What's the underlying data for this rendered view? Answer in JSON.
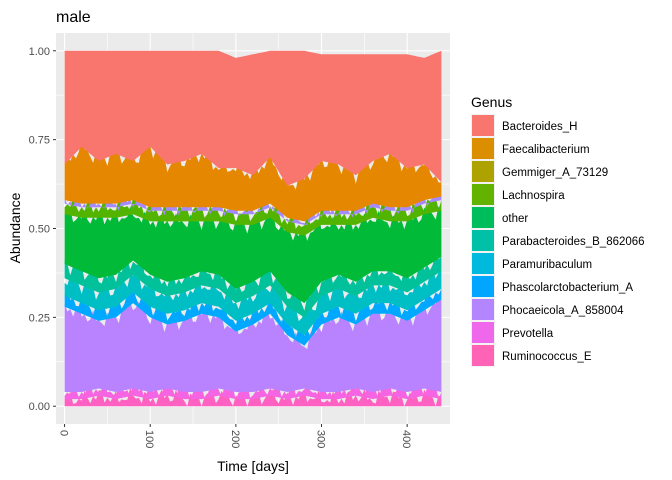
{
  "chart_data": {
    "type": "area",
    "title": "male",
    "xlabel": "Time [days]",
    "ylabel": "Abundance",
    "xlim": [
      -10,
      450
    ],
    "ylim": [
      -0.05,
      1.05
    ],
    "x_ticks": [
      0,
      100,
      200,
      300,
      400
    ],
    "x_tick_labels": [
      "0",
      "100",
      "200",
      "300",
      "400"
    ],
    "y_ticks": [
      0,
      0.25,
      0.5,
      0.75,
      1.0
    ],
    "y_tick_labels": [
      "0.00",
      "0.25",
      "0.50",
      "0.75",
      "1.00"
    ],
    "grid": true,
    "legend_title": "Genus",
    "legend_position": "right",
    "x": [
      0,
      20,
      40,
      60,
      80,
      100,
      120,
      140,
      160,
      180,
      200,
      220,
      240,
      260,
      280,
      300,
      320,
      340,
      360,
      380,
      400,
      420,
      440
    ],
    "series": [
      {
        "name": "Ruminococcus_E",
        "color": "#FF61C3",
        "values": [
          0.02,
          0.02,
          0.03,
          0.02,
          0.03,
          0.02,
          0.03,
          0.02,
          0.02,
          0.03,
          0.02,
          0.02,
          0.03,
          0.02,
          0.03,
          0.02,
          0.02,
          0.03,
          0.02,
          0.03,
          0.02,
          0.03,
          0.02
        ]
      },
      {
        "name": "Prevotella",
        "color": "#F564E3",
        "values": [
          0.02,
          0.02,
          0.02,
          0.02,
          0.02,
          0.02,
          0.02,
          0.02,
          0.02,
          0.02,
          0.02,
          0.02,
          0.02,
          0.02,
          0.02,
          0.02,
          0.02,
          0.02,
          0.02,
          0.02,
          0.02,
          0.02,
          0.02
        ]
      },
      {
        "name": "Phocaeicola_A_858004",
        "color": "#B983FF",
        "values": [
          0.24,
          0.22,
          0.19,
          0.21,
          0.24,
          0.21,
          0.18,
          0.2,
          0.22,
          0.2,
          0.17,
          0.19,
          0.21,
          0.16,
          0.12,
          0.19,
          0.21,
          0.18,
          0.22,
          0.21,
          0.2,
          0.22,
          0.26
        ]
      },
      {
        "name": "Phascolarctobacterium_A",
        "color": "#00A9FF",
        "values": [
          0.03,
          0.03,
          0.03,
          0.03,
          0.03,
          0.03,
          0.03,
          0.03,
          0.03,
          0.03,
          0.03,
          0.03,
          0.03,
          0.03,
          0.03,
          0.03,
          0.03,
          0.03,
          0.03,
          0.03,
          0.03,
          0.03,
          0.03
        ]
      },
      {
        "name": "Paramuribaculum",
        "color": "#00BFC4",
        "values": [
          0.05,
          0.05,
          0.05,
          0.05,
          0.05,
          0.05,
          0.05,
          0.05,
          0.05,
          0.05,
          0.05,
          0.05,
          0.05,
          0.05,
          0.05,
          0.05,
          0.05,
          0.05,
          0.05,
          0.05,
          0.05,
          0.05,
          0.05
        ]
      },
      {
        "name": "Parabacteroides_B_862066",
        "color": "#00C19A",
        "values": [
          0.04,
          0.04,
          0.04,
          0.04,
          0.04,
          0.04,
          0.04,
          0.04,
          0.04,
          0.04,
          0.04,
          0.04,
          0.04,
          0.04,
          0.04,
          0.04,
          0.04,
          0.04,
          0.04,
          0.04,
          0.04,
          0.04,
          0.04
        ]
      },
      {
        "name": "other",
        "color": "#00BA38",
        "values": [
          0.14,
          0.15,
          0.17,
          0.16,
          0.13,
          0.15,
          0.17,
          0.16,
          0.14,
          0.15,
          0.18,
          0.16,
          0.15,
          0.17,
          0.19,
          0.16,
          0.14,
          0.16,
          0.15,
          0.14,
          0.16,
          0.15,
          0.13
        ]
      },
      {
        "name": "Lachnospira",
        "color": "#53B400",
        "values": [
          0.03,
          0.03,
          0.03,
          0.03,
          0.03,
          0.03,
          0.03,
          0.03,
          0.03,
          0.03,
          0.03,
          0.03,
          0.03,
          0.03,
          0.03,
          0.03,
          0.03,
          0.03,
          0.03,
          0.03,
          0.03,
          0.03,
          0.03
        ]
      },
      {
        "name": "Gemmiger_A_73129",
        "color": "#A58AFF",
        "values": [
          0.01,
          0.01,
          0.01,
          0.01,
          0.01,
          0.01,
          0.01,
          0.01,
          0.01,
          0.01,
          0.01,
          0.01,
          0.01,
          0.01,
          0.01,
          0.01,
          0.01,
          0.01,
          0.01,
          0.01,
          0.01,
          0.01,
          0.01
        ]
      },
      {
        "name": "Faecalibacterium",
        "color": "#E58700",
        "values": [
          0.1,
          0.16,
          0.12,
          0.14,
          0.11,
          0.17,
          0.12,
          0.13,
          0.15,
          0.11,
          0.12,
          0.1,
          0.13,
          0.09,
          0.12,
          0.14,
          0.13,
          0.1,
          0.12,
          0.15,
          0.11,
          0.1,
          0.04
        ]
      },
      {
        "name": "Bacteroides_H",
        "color": "#F8766D",
        "values": [
          0.32,
          0.27,
          0.31,
          0.29,
          0.31,
          0.27,
          0.32,
          0.31,
          0.29,
          0.33,
          0.31,
          0.34,
          0.3,
          0.38,
          0.36,
          0.3,
          0.31,
          0.34,
          0.3,
          0.28,
          0.32,
          0.3,
          0.37
        ]
      }
    ],
    "legend_order": [
      "Bacteroides_H",
      "Faecalibacterium",
      "Gemmiger_A_73129",
      "Lachnospira",
      "other",
      "Parabacteroides_B_862066",
      "Paramuribaculum",
      "Phascolarctobacterium_A",
      "Phocaeicola_A_858004",
      "Prevotella",
      "Ruminococcus_E"
    ],
    "legend_colors": {
      "Bacteroides_H": "#F8766D",
      "Faecalibacterium": "#DB8E00",
      "Gemmiger_A_73129": "#AEA200",
      "Lachnospira": "#64B200",
      "other": "#00BD5C",
      "Parabacteroides_B_862066": "#00C1A7",
      "Paramuribaculum": "#00BADE",
      "Phascolarctobacterium_A": "#00A6FF",
      "Phocaeicola_A_858004": "#B385FF",
      "Prevotella": "#EF67EB",
      "Ruminococcus_E": "#FF63B6"
    }
  }
}
